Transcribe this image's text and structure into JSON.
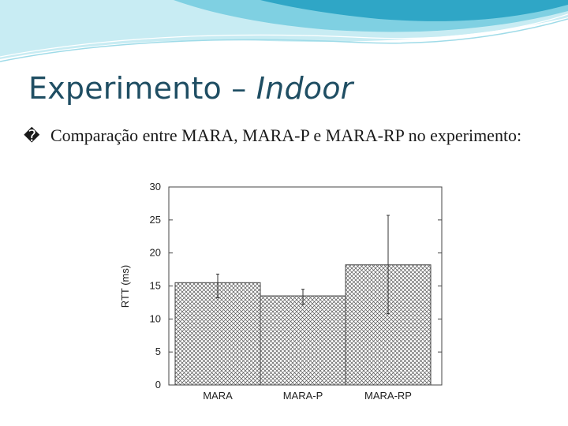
{
  "slide": {
    "title_main": "Experimento – ",
    "title_italic": "Indoor",
    "bullet_icon": "bullet-glyph",
    "bullet_glyph": "�",
    "bullet_text": "Comparação entre MARA, MARA-P e MARA-RP no experimento:"
  },
  "colors": {
    "title": "#1f4e63",
    "wave_light": "#c8ecf3",
    "wave_mid": "#7fd0e2",
    "wave_dark": "#2fa6c6"
  },
  "chart_data": {
    "type": "bar",
    "categories": [
      "MARA",
      "MARA-P",
      "MARA-RP"
    ],
    "values": [
      15.5,
      13.5,
      18.2
    ],
    "error_low": [
      13.2,
      12.2,
      10.8
    ],
    "error_high": [
      16.8,
      14.5,
      25.7
    ],
    "ylabel": "RTT (ms)",
    "xlabel": "",
    "ylim": [
      0,
      30
    ],
    "yticks": [
      0,
      5,
      10,
      15,
      20,
      25,
      30
    ],
    "grid": false,
    "bar_fill": "crosshatch"
  }
}
